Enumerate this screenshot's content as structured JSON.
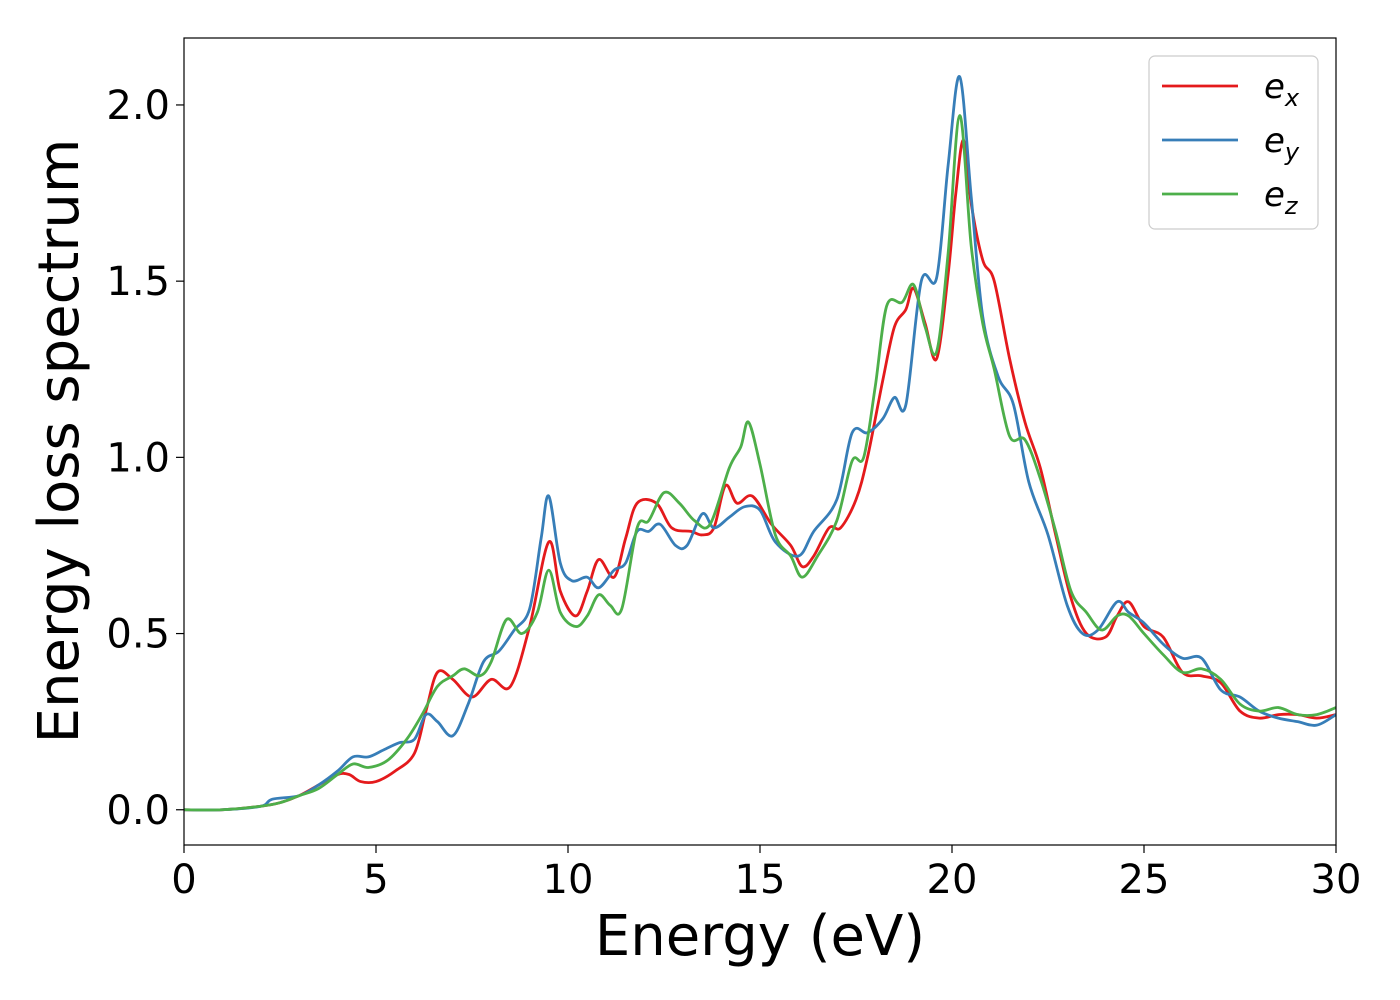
{
  "chart_data": {
    "type": "line",
    "xlabel": "Energy (eV)",
    "ylabel": "Energy loss spectrum",
    "xlim": [
      0,
      30
    ],
    "ylim": [
      -0.1,
      2.19
    ],
    "x_ticks": [
      0,
      5,
      10,
      15,
      20,
      25,
      30
    ],
    "x_tick_labels": [
      "0",
      "5",
      "10",
      "15",
      "20",
      "25",
      "30"
    ],
    "y_ticks": [
      0.0,
      0.5,
      1.0,
      1.5,
      2.0
    ],
    "y_tick_labels": [
      "0.0",
      "0.5",
      "1.0",
      "1.5",
      "2.0"
    ],
    "grid": false,
    "legend_position": "top-right",
    "series": [
      {
        "name": "e",
        "subscript": "x",
        "color": "#e41a1c",
        "points": [
          [
            0,
            0
          ],
          [
            1,
            0.0
          ],
          [
            2,
            0.01
          ],
          [
            2.5,
            0.02
          ],
          [
            3,
            0.04
          ],
          [
            3.5,
            0.07
          ],
          [
            4,
            0.1
          ],
          [
            4.3,
            0.1
          ],
          [
            4.6,
            0.08
          ],
          [
            5,
            0.08
          ],
          [
            5.5,
            0.11
          ],
          [
            6,
            0.16
          ],
          [
            6.3,
            0.28
          ],
          [
            6.6,
            0.39
          ],
          [
            7,
            0.37
          ],
          [
            7.5,
            0.32
          ],
          [
            8,
            0.37
          ],
          [
            8.5,
            0.35
          ],
          [
            9,
            0.52
          ],
          [
            9.5,
            0.76
          ],
          [
            9.8,
            0.62
          ],
          [
            10.2,
            0.55
          ],
          [
            10.5,
            0.62
          ],
          [
            10.8,
            0.71
          ],
          [
            11.2,
            0.66
          ],
          [
            11.5,
            0.77
          ],
          [
            11.8,
            0.87
          ],
          [
            12.3,
            0.87
          ],
          [
            12.7,
            0.8
          ],
          [
            13.2,
            0.79
          ],
          [
            13.5,
            0.78
          ],
          [
            13.8,
            0.8
          ],
          [
            14.1,
            0.92
          ],
          [
            14.4,
            0.87
          ],
          [
            14.8,
            0.89
          ],
          [
            15.3,
            0.81
          ],
          [
            15.8,
            0.75
          ],
          [
            16.1,
            0.69
          ],
          [
            16.4,
            0.72
          ],
          [
            16.8,
            0.8
          ],
          [
            17.1,
            0.8
          ],
          [
            17.5,
            0.88
          ],
          [
            17.8,
            1.0
          ],
          [
            18.2,
            1.22
          ],
          [
            18.5,
            1.37
          ],
          [
            18.8,
            1.42
          ],
          [
            19,
            1.48
          ],
          [
            19.3,
            1.38
          ],
          [
            19.6,
            1.28
          ],
          [
            19.9,
            1.52
          ],
          [
            20.1,
            1.75
          ],
          [
            20.3,
            1.9
          ],
          [
            20.5,
            1.72
          ],
          [
            20.8,
            1.56
          ],
          [
            21.1,
            1.5
          ],
          [
            21.5,
            1.28
          ],
          [
            21.9,
            1.1
          ],
          [
            22.3,
            0.97
          ],
          [
            22.7,
            0.78
          ],
          [
            23.1,
            0.6
          ],
          [
            23.5,
            0.5
          ],
          [
            24,
            0.49
          ],
          [
            24.3,
            0.55
          ],
          [
            24.6,
            0.59
          ],
          [
            25,
            0.52
          ],
          [
            25.5,
            0.49
          ],
          [
            26,
            0.39
          ],
          [
            26.5,
            0.38
          ],
          [
            27,
            0.36
          ],
          [
            27.5,
            0.28
          ],
          [
            28,
            0.26
          ],
          [
            28.5,
            0.27
          ],
          [
            29,
            0.27
          ],
          [
            29.5,
            0.26
          ],
          [
            30,
            0.27
          ]
        ]
      },
      {
        "name": "e",
        "subscript": "y",
        "color": "#377eb8",
        "points": [
          [
            0,
            0
          ],
          [
            1,
            0.0
          ],
          [
            2,
            0.01
          ],
          [
            2.3,
            0.03
          ],
          [
            3,
            0.04
          ],
          [
            3.5,
            0.07
          ],
          [
            4,
            0.11
          ],
          [
            4.4,
            0.15
          ],
          [
            4.8,
            0.15
          ],
          [
            5.2,
            0.17
          ],
          [
            5.6,
            0.19
          ],
          [
            6,
            0.2
          ],
          [
            6.3,
            0.27
          ],
          [
            6.6,
            0.25
          ],
          [
            7,
            0.21
          ],
          [
            7.4,
            0.3
          ],
          [
            7.8,
            0.42
          ],
          [
            8.2,
            0.45
          ],
          [
            8.6,
            0.51
          ],
          [
            9,
            0.57
          ],
          [
            9.3,
            0.77
          ],
          [
            9.5,
            0.89
          ],
          [
            9.8,
            0.7
          ],
          [
            10.1,
            0.65
          ],
          [
            10.5,
            0.66
          ],
          [
            10.8,
            0.63
          ],
          [
            11.2,
            0.68
          ],
          [
            11.5,
            0.7
          ],
          [
            11.8,
            0.79
          ],
          [
            12.1,
            0.79
          ],
          [
            12.4,
            0.81
          ],
          [
            12.8,
            0.75
          ],
          [
            13.1,
            0.75
          ],
          [
            13.5,
            0.84
          ],
          [
            13.8,
            0.8
          ],
          [
            14.2,
            0.83
          ],
          [
            14.6,
            0.86
          ],
          [
            15,
            0.85
          ],
          [
            15.4,
            0.76
          ],
          [
            16,
            0.72
          ],
          [
            16.4,
            0.79
          ],
          [
            17,
            0.88
          ],
          [
            17.4,
            1.07
          ],
          [
            17.8,
            1.07
          ],
          [
            18.2,
            1.11
          ],
          [
            18.5,
            1.17
          ],
          [
            18.8,
            1.15
          ],
          [
            19.2,
            1.5
          ],
          [
            19.6,
            1.51
          ],
          [
            19.9,
            1.83
          ],
          [
            20.2,
            2.08
          ],
          [
            20.5,
            1.74
          ],
          [
            20.8,
            1.4
          ],
          [
            21.2,
            1.23
          ],
          [
            21.6,
            1.15
          ],
          [
            22,
            0.93
          ],
          [
            22.5,
            0.78
          ],
          [
            23,
            0.58
          ],
          [
            23.4,
            0.5
          ],
          [
            23.8,
            0.51
          ],
          [
            24.3,
            0.59
          ],
          [
            24.6,
            0.56
          ],
          [
            25,
            0.53
          ],
          [
            25.5,
            0.47
          ],
          [
            26,
            0.43
          ],
          [
            26.5,
            0.43
          ],
          [
            27,
            0.34
          ],
          [
            27.5,
            0.32
          ],
          [
            28,
            0.28
          ],
          [
            28.5,
            0.26
          ],
          [
            29,
            0.25
          ],
          [
            29.5,
            0.24
          ],
          [
            30,
            0.27
          ]
        ]
      },
      {
        "name": "e",
        "subscript": "z",
        "color": "#4daf4a",
        "points": [
          [
            0,
            0
          ],
          [
            1,
            0.0
          ],
          [
            2,
            0.01
          ],
          [
            2.5,
            0.02
          ],
          [
            3,
            0.04
          ],
          [
            3.5,
            0.06
          ],
          [
            4,
            0.1
          ],
          [
            4.4,
            0.13
          ],
          [
            4.8,
            0.12
          ],
          [
            5.3,
            0.14
          ],
          [
            5.8,
            0.2
          ],
          [
            6.2,
            0.27
          ],
          [
            6.6,
            0.35
          ],
          [
            7,
            0.38
          ],
          [
            7.3,
            0.4
          ],
          [
            7.7,
            0.38
          ],
          [
            8,
            0.42
          ],
          [
            8.4,
            0.54
          ],
          [
            8.8,
            0.5
          ],
          [
            9.2,
            0.56
          ],
          [
            9.5,
            0.68
          ],
          [
            9.8,
            0.56
          ],
          [
            10.2,
            0.52
          ],
          [
            10.5,
            0.55
          ],
          [
            10.8,
            0.61
          ],
          [
            11.1,
            0.58
          ],
          [
            11.4,
            0.57
          ],
          [
            11.8,
            0.8
          ],
          [
            12.1,
            0.82
          ],
          [
            12.5,
            0.9
          ],
          [
            12.9,
            0.87
          ],
          [
            13.3,
            0.82
          ],
          [
            13.7,
            0.81
          ],
          [
            14.2,
            0.97
          ],
          [
            14.5,
            1.03
          ],
          [
            14.7,
            1.1
          ],
          [
            15,
            0.98
          ],
          [
            15.4,
            0.78
          ],
          [
            15.8,
            0.72
          ],
          [
            16.1,
            0.66
          ],
          [
            16.5,
            0.72
          ],
          [
            17,
            0.82
          ],
          [
            17.4,
            0.99
          ],
          [
            17.7,
            1.0
          ],
          [
            18,
            1.2
          ],
          [
            18.3,
            1.43
          ],
          [
            18.7,
            1.44
          ],
          [
            19,
            1.49
          ],
          [
            19.3,
            1.37
          ],
          [
            19.6,
            1.3
          ],
          [
            19.9,
            1.58
          ],
          [
            20.2,
            1.97
          ],
          [
            20.5,
            1.6
          ],
          [
            20.8,
            1.38
          ],
          [
            21.1,
            1.25
          ],
          [
            21.5,
            1.06
          ],
          [
            21.9,
            1.05
          ],
          [
            22.3,
            0.94
          ],
          [
            22.7,
            0.79
          ],
          [
            23.1,
            0.62
          ],
          [
            23.5,
            0.56
          ],
          [
            23.9,
            0.51
          ],
          [
            24.3,
            0.55
          ],
          [
            24.6,
            0.55
          ],
          [
            25,
            0.5
          ],
          [
            25.5,
            0.44
          ],
          [
            26,
            0.39
          ],
          [
            26.5,
            0.4
          ],
          [
            27,
            0.37
          ],
          [
            27.5,
            0.3
          ],
          [
            28,
            0.28
          ],
          [
            28.5,
            0.29
          ],
          [
            29,
            0.27
          ],
          [
            29.5,
            0.27
          ],
          [
            30,
            0.29
          ]
        ]
      }
    ]
  }
}
